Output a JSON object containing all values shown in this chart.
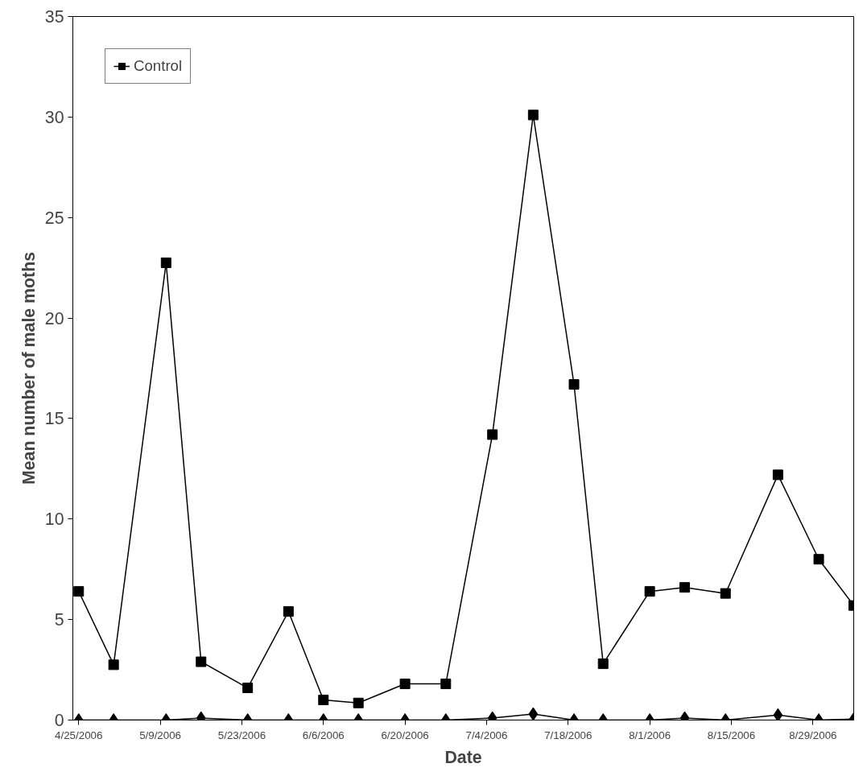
{
  "chart_data": {
    "type": "line",
    "xlabel": "Date",
    "ylabel": "Mean number of male moths",
    "x": [
      "2006-04-25",
      "2006-05-01",
      "2006-05-10",
      "2006-05-16",
      "2006-05-24",
      "2006-05-31",
      "2006-06-06",
      "2006-06-12",
      "2006-06-20",
      "2006-06-27",
      "2006-07-05",
      "2006-07-12",
      "2006-07-19",
      "2006-07-24",
      "2006-08-01",
      "2006-08-07",
      "2006-08-14",
      "2006-08-23",
      "2006-08-30",
      "2006-09-05"
    ],
    "series": [
      {
        "color": "#000000",
        "marker": "diamond",
        "values": [
          0,
          0,
          0,
          0.1,
          0,
          0,
          0,
          0,
          0,
          0,
          0.1,
          0.3,
          0,
          0,
          0,
          0.1,
          0,
          0.25,
          0,
          0.05
        ]
      },
      {
        "name": "Control",
        "color": "#000000",
        "marker": "square",
        "values": [
          6.4,
          2.75,
          22.75,
          2.9,
          1.6,
          5.4,
          1.0,
          0.85,
          1.8,
          1.8,
          14.2,
          30.1,
          16.7,
          2.8,
          6.4,
          6.6,
          6.3,
          12.2,
          8.0,
          5.7
        ]
      }
    ],
    "xlim": [
      "2006-04-24",
      "2006-09-05"
    ],
    "xticks": [
      {
        "value": "2006-04-25",
        "label": "4/25/2006"
      },
      {
        "value": "2006-05-09",
        "label": "5/9/2006"
      },
      {
        "value": "2006-05-23",
        "label": "5/23/2006"
      },
      {
        "value": "2006-06-06",
        "label": "6/6/2006"
      },
      {
        "value": "2006-06-20",
        "label": "6/20/2006"
      },
      {
        "value": "2006-07-04",
        "label": "7/4/2006"
      },
      {
        "value": "2006-07-18",
        "label": "7/18/2006"
      },
      {
        "value": "2006-08-01",
        "label": "8/1/2006"
      },
      {
        "value": "2006-08-15",
        "label": "8/15/2006"
      },
      {
        "value": "2006-08-29",
        "label": "8/29/2006"
      }
    ],
    "ylim": [
      0,
      35
    ],
    "yticks": [
      0,
      5,
      10,
      15,
      20,
      25,
      30,
      35
    ],
    "grid": false,
    "legend": "top left"
  }
}
